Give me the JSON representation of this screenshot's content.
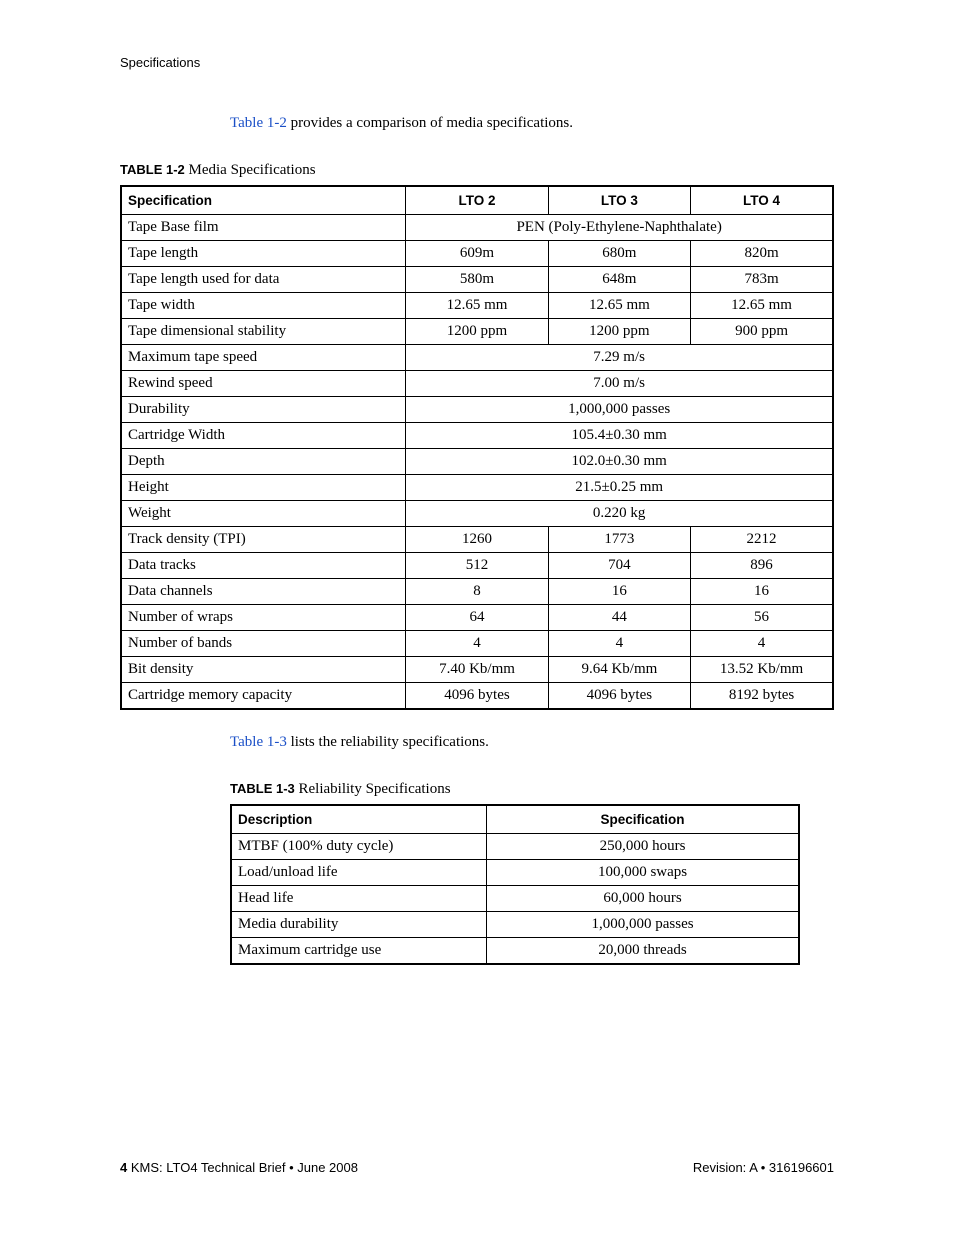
{
  "header": {
    "section": "Specifications"
  },
  "intro1": {
    "link": "Table 1-2",
    "rest": " provides a comparison of media specifications."
  },
  "caption1": {
    "bold": "TABLE 1-2",
    "rest": " Media Specifications"
  },
  "table1": {
    "headers": [
      "Specification",
      "LTO 2",
      "LTO 3",
      "LTO 4"
    ],
    "rows": [
      {
        "spec": "Tape Base film",
        "span": "PEN (Poly-Ethylene-Naphthalate)"
      },
      {
        "spec": "Tape length",
        "c": [
          "609m",
          "680m",
          "820m"
        ]
      },
      {
        "spec": "Tape length used for data",
        "c": [
          "580m",
          "648m",
          "783m"
        ]
      },
      {
        "spec": "Tape width",
        "c": [
          "12.65 mm",
          "12.65 mm",
          "12.65 mm"
        ]
      },
      {
        "spec": "Tape dimensional stability",
        "c": [
          "1200 ppm",
          "1200 ppm",
          "900 ppm"
        ]
      },
      {
        "spec": "Maximum tape speed",
        "span": "7.29 m/s"
      },
      {
        "spec": "Rewind speed",
        "span": "7.00 m/s"
      },
      {
        "spec": "Durability",
        "span": "1,000,000 passes"
      },
      {
        "spec": "Cartridge Width",
        "span": "105.4±0.30 mm"
      },
      {
        "spec": "Depth",
        "span": "102.0±0.30 mm"
      },
      {
        "spec": "Height",
        "span": "21.5±0.25 mm"
      },
      {
        "spec": "Weight",
        "span": "0.220 kg"
      },
      {
        "spec": "Track density (TPI)",
        "c": [
          "1260",
          "1773",
          "2212"
        ]
      },
      {
        "spec": "Data tracks",
        "c": [
          "512",
          "704",
          "896"
        ]
      },
      {
        "spec": "Data channels",
        "c": [
          "8",
          "16",
          "16"
        ]
      },
      {
        "spec": "Number of wraps",
        "c": [
          "64",
          "44",
          "56"
        ]
      },
      {
        "spec": "Number of bands",
        "c": [
          "4",
          "4",
          "4"
        ]
      },
      {
        "spec": "Bit density",
        "c": [
          "7.40 Kb/mm",
          "9.64 Kb/mm",
          "13.52 Kb/mm"
        ]
      },
      {
        "spec": "Cartridge memory capacity",
        "c": [
          "4096 bytes",
          "4096 bytes",
          "8192 bytes"
        ]
      }
    ]
  },
  "intro2": {
    "link": "Table 1-3",
    "rest": " lists the reliability specifications."
  },
  "caption2": {
    "bold": "TABLE 1-3",
    "rest": " Reliability Specifications"
  },
  "table2": {
    "headers": [
      "Description",
      "Specification"
    ],
    "rows": [
      {
        "c": [
          "MTBF (100% duty cycle)",
          "250,000 hours"
        ]
      },
      {
        "c": [
          "Load/unload life",
          "100,000 swaps"
        ]
      },
      {
        "c": [
          "Head life",
          "60,000 hours"
        ]
      },
      {
        "c": [
          "Media durability",
          "1,000,000 passes"
        ]
      },
      {
        "c": [
          "Maximum cartridge use",
          "20,000 threads"
        ]
      }
    ]
  },
  "footer": {
    "pagenum": "4",
    "left": "  KMS: LTO4 Technical Brief  •  June 2008",
    "right": "Revision: A  •  316196601"
  }
}
